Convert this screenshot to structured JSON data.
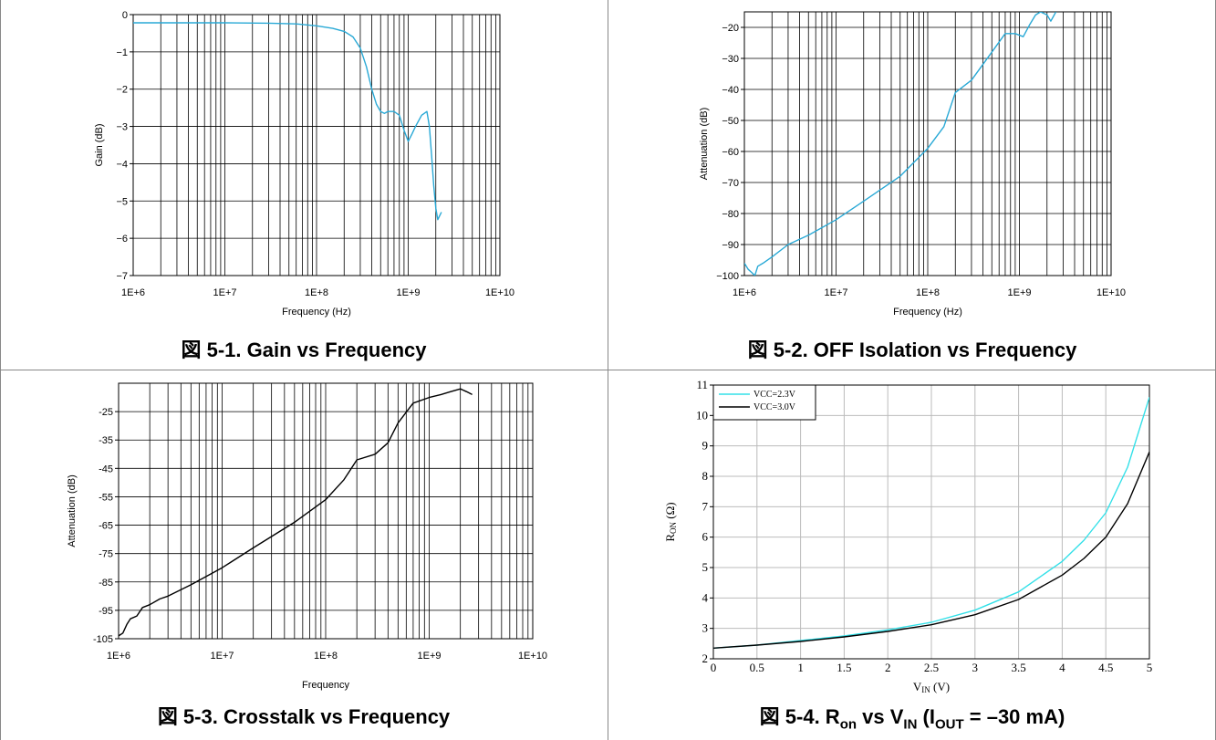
{
  "chart_data": [
    {
      "type": "line",
      "caption": "図 5-1. Gain vs Frequency",
      "xlabel": "Frequency (Hz)",
      "ylabel": "Gain (dB)",
      "xscale": "log",
      "xlim": [
        1000000,
        10000000000
      ],
      "ylim": [
        -7,
        0
      ],
      "xticks": [
        "1E+6",
        "1E+7",
        "1E+8",
        "1E+9",
        "1E+10"
      ],
      "yticks": [
        "0",
        "−1",
        "−2",
        "−3",
        "−4",
        "−5",
        "−6",
        "−7"
      ],
      "grid": true,
      "series": [
        {
          "color": "#29a9d6",
          "x": [
            1000000,
            10000000,
            30000000,
            60000000,
            100000000,
            150000000,
            200000000,
            250000000,
            300000000,
            350000000,
            400000000,
            450000000,
            500000000,
            550000000,
            600000000,
            700000000,
            800000000,
            900000000,
            1000000000,
            1100000000,
            1200000000,
            1400000000,
            1600000000,
            1700000000,
            1800000000,
            1900000000,
            2000000000,
            2100000000,
            2200000000,
            2300000000
          ],
          "y": [
            -0.22,
            -0.22,
            -0.23,
            -0.25,
            -0.3,
            -0.37,
            -0.45,
            -0.6,
            -0.9,
            -1.4,
            -2.0,
            -2.4,
            -2.6,
            -2.65,
            -2.6,
            -2.6,
            -2.7,
            -3.1,
            -3.4,
            -3.2,
            -3.0,
            -2.7,
            -2.6,
            -3.0,
            -3.8,
            -4.6,
            -5.2,
            -5.5,
            -5.4,
            -5.3
          ]
        }
      ]
    },
    {
      "type": "line",
      "caption": "図 5-2. OFF Isolation vs Frequency",
      "xlabel": "Frequency (Hz)",
      "ylabel": "Attenuation (dB)",
      "xscale": "log",
      "xlim": [
        1000000,
        10000000000
      ],
      "ylim": [
        -100,
        -15
      ],
      "xticks": [
        "1E+6",
        "1E+7",
        "1E+8",
        "1E+9",
        "1E+10"
      ],
      "yticks": [
        "−20",
        "−30",
        "−40",
        "−50",
        "−60",
        "−70",
        "−80",
        "−90",
        "−100"
      ],
      "grid": true,
      "series": [
        {
          "color": "#29a9d6",
          "x": [
            1000000,
            1100000,
            1200000,
            1300000,
            1400000,
            1600000,
            2000000,
            3000000,
            5000000,
            10000000,
            20000000,
            50000000,
            100000000,
            150000000,
            200000000,
            300000000,
            500000000,
            700000000,
            900000000,
            1100000000,
            1300000000,
            1500000000,
            1700000000,
            2000000000,
            2200000000,
            2500000000
          ],
          "y": [
            -96,
            -98,
            -99,
            -100,
            -97,
            -96,
            -94,
            -90,
            -87,
            -82,
            -76,
            -68,
            -59,
            -52,
            -41,
            -37,
            -28,
            -22,
            -22,
            -23,
            -19,
            -16,
            -15,
            -16,
            -18,
            -15
          ]
        }
      ]
    },
    {
      "type": "line",
      "caption": "図 5-3. Crosstalk vs Frequency",
      "xlabel": "Frequency",
      "ylabel": "Attenuation (dB)",
      "xscale": "log",
      "xlim": [
        1000000,
        10000000000
      ],
      "ylim": [
        -105,
        -15
      ],
      "xticks": [
        "1E+6",
        "1E+7",
        "1E+8",
        "1E+9",
        "1E+10"
      ],
      "yticks": [
        "-25",
        "-35",
        "-45",
        "-55",
        "-65",
        "-75",
        "-85",
        "-95",
        "-105"
      ],
      "grid": true,
      "series": [
        {
          "color": "#000000",
          "x": [
            1000000,
            1100000,
            1200000,
            1300000,
            1500000,
            1700000,
            2000000,
            2500000,
            3000000,
            5000000,
            10000000,
            20000000,
            50000000,
            100000000,
            150000000,
            200000000,
            300000000,
            400000000,
            500000000,
            700000000,
            1000000000,
            1300000000,
            1600000000,
            2000000000,
            2300000000,
            2600000000
          ],
          "y": [
            -104,
            -103,
            -100,
            -98,
            -97,
            -94,
            -93,
            -91,
            -90,
            -86,
            -80,
            -73,
            -64,
            -56,
            -49,
            -42,
            -40,
            -36,
            -29,
            -22,
            -20,
            -19,
            -18,
            -17,
            -18,
            -19
          ]
        }
      ]
    },
    {
      "type": "line",
      "caption": "図 5-4. R",
      "caption_on": "on",
      "caption_vs": " vs V",
      "caption_in": "IN",
      "caption_lp": " (I",
      "caption_out": "OUT",
      "caption_rest": " = –30 mA)",
      "xlabel": "V",
      "xlabel_sub": "IN",
      "xlabel_unit": " (V)",
      "ylabel": "R",
      "ylabel_sub": "ON",
      "ylabel_unit": " (Ω)",
      "xlim": [
        0,
        5
      ],
      "ylim": [
        2,
        11
      ],
      "xticks": [
        "0",
        "0.5",
        "1",
        "1.5",
        "2",
        "2.5",
        "3",
        "3.5",
        "4",
        "4.5",
        "5"
      ],
      "yticks": [
        "2",
        "3",
        "4",
        "5",
        "6",
        "7",
        "8",
        "9",
        "10",
        "11"
      ],
      "grid": true,
      "legend": "top-left",
      "series": [
        {
          "name": "VCC=2.3V",
          "color": "#33e0e8",
          "x": [
            0,
            0.5,
            1,
            1.5,
            2,
            2.5,
            3,
            3.5,
            4,
            4.25,
            4.5,
            4.75,
            5
          ],
          "y": [
            2.35,
            2.45,
            2.6,
            2.75,
            2.95,
            3.2,
            3.6,
            4.2,
            5.2,
            5.9,
            6.8,
            8.3,
            10.6
          ]
        },
        {
          "name": "VCC=3.0V",
          "color": "#000000",
          "x": [
            0,
            0.5,
            1,
            1.5,
            2,
            2.5,
            3,
            3.5,
            4,
            4.25,
            4.5,
            4.75,
            5
          ],
          "y": [
            2.35,
            2.45,
            2.57,
            2.72,
            2.9,
            3.12,
            3.45,
            3.95,
            4.75,
            5.3,
            6.0,
            7.1,
            8.8
          ]
        }
      ]
    }
  ]
}
